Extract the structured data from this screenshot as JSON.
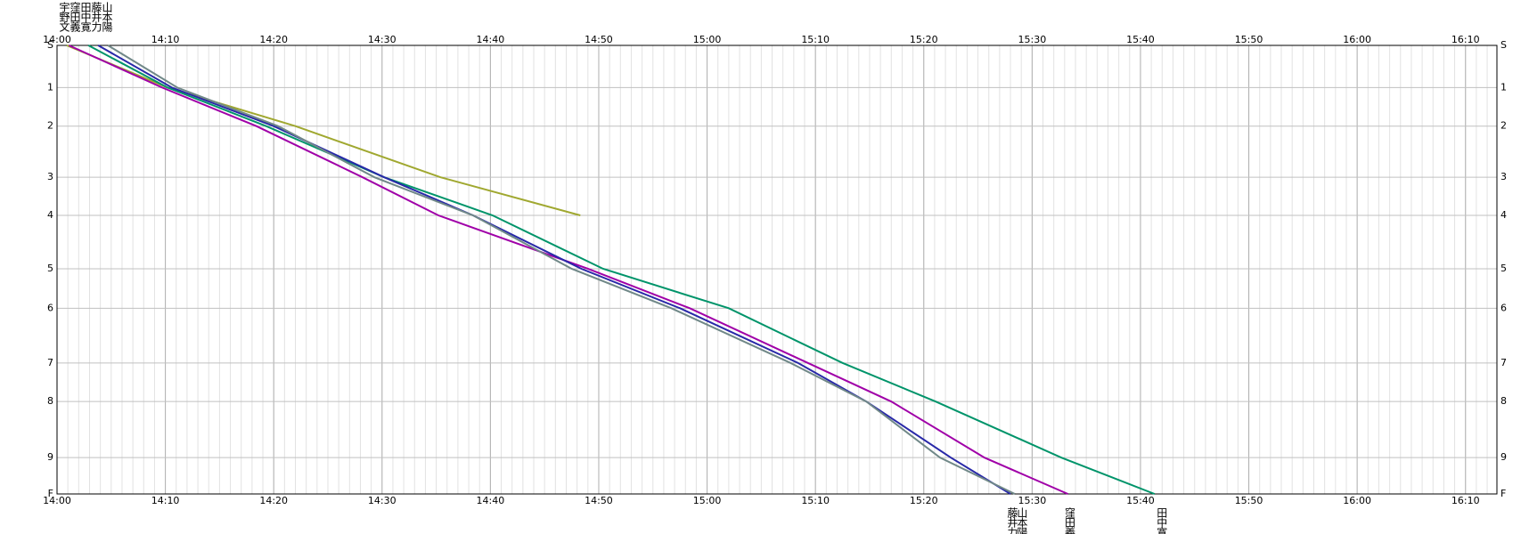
{
  "chart_data": {
    "type": "line",
    "xlim": [
      0,
      132.9
    ],
    "xticks": [
      {
        "value": 0,
        "label": "14:00"
      },
      {
        "value": 10,
        "label": "14:10"
      },
      {
        "value": 20,
        "label": "14:20"
      },
      {
        "value": 30,
        "label": "14:30"
      },
      {
        "value": 40,
        "label": "14:40"
      },
      {
        "value": 50,
        "label": "14:50"
      },
      {
        "value": 60,
        "label": "15:00"
      },
      {
        "value": 70,
        "label": "15:10"
      },
      {
        "value": 80,
        "label": "15:20"
      },
      {
        "value": 90,
        "label": "15:30"
      },
      {
        "value": 100,
        "label": "15:40"
      },
      {
        "value": 110,
        "label": "15:50"
      },
      {
        "value": 120,
        "label": "16:00"
      },
      {
        "value": 130,
        "label": "16:10"
      }
    ],
    "minor_grid_step": 1,
    "ylim": [
      100,
      0
    ],
    "yticks": [
      {
        "value": 0,
        "label": "S"
      },
      {
        "value": 9.4,
        "label": "1"
      },
      {
        "value": 18.0,
        "label": "2"
      },
      {
        "value": 29.4,
        "label": "3"
      },
      {
        "value": 37.9,
        "label": "4"
      },
      {
        "value": 49.8,
        "label": "5"
      },
      {
        "value": 58.6,
        "label": "6"
      },
      {
        "value": 70.8,
        "label": "7"
      },
      {
        "value": 79.4,
        "label": "8"
      },
      {
        "value": 91.9,
        "label": "9"
      },
      {
        "value": 100,
        "label": "F"
      }
    ],
    "grid": true,
    "series": [
      {
        "name": "宇野文",
        "color": "#a0a830",
        "x": [
          0.9,
          10.2,
          22.0,
          35.4,
          48.3
        ],
        "values": [
          0,
          9.4,
          18.0,
          29.4,
          37.9
        ]
      },
      {
        "name": "窪田義",
        "color": "#a000a8",
        "x": [
          1.1,
          9.7,
          18.4,
          28.2,
          35.2,
          49.0,
          58.4,
          69.3,
          77.0,
          85.6,
          93.3
        ],
        "values": [
          0,
          9.4,
          18.0,
          29.4,
          37.9,
          49.8,
          58.6,
          70.8,
          79.4,
          91.9,
          100
        ]
      },
      {
        "name": "田中寛",
        "color": "#00946a",
        "x": [
          2.9,
          10.2,
          19.3,
          30.2,
          40.2,
          50.4,
          62.0,
          72.5,
          81.1,
          92.7,
          101.3
        ],
        "values": [
          0,
          9.4,
          18.0,
          29.4,
          37.9,
          49.8,
          58.6,
          70.8,
          79.4,
          91.9,
          100
        ]
      },
      {
        "name": "藤井力",
        "color": "#2828a8",
        "x": [
          3.8,
          10.6,
          20.0,
          30.2,
          38.4,
          48.4,
          57.5,
          68.4,
          74.7,
          82.5,
          88.0
        ],
        "values": [
          0,
          9.4,
          18.0,
          29.4,
          37.9,
          49.8,
          58.6,
          70.8,
          79.4,
          91.9,
          100
        ]
      },
      {
        "name": "山本陽",
        "color": "#708888",
        "x": [
          4.7,
          11.1,
          20.4,
          29.3,
          38.4,
          47.5,
          56.7,
          67.7,
          74.7,
          81.5,
          88.4
        ],
        "values": [
          0,
          9.4,
          18.0,
          29.4,
          37.9,
          49.8,
          58.6,
          70.8,
          79.4,
          91.9,
          100
        ]
      }
    ]
  }
}
